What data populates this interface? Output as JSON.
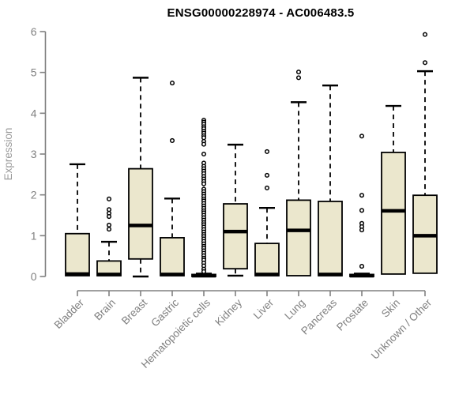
{
  "chart_data": {
    "type": "boxplot",
    "title": "ENSG00000228974 - AC006483.5",
    "xlabel": "",
    "ylabel": "Expression",
    "ylim": [
      0,
      6
    ],
    "yticks": [
      0,
      1,
      2,
      3,
      4,
      5,
      6
    ],
    "grid": false,
    "legend": "none",
    "categories": [
      "Bladder",
      "Brain",
      "Breast",
      "Gastric",
      "Hematopoietic cells",
      "Kidney",
      "Liver",
      "Lung",
      "Pancreas",
      "Prostate",
      "Skin",
      "Unknown / Other"
    ],
    "series": [
      {
        "name": "Bladder",
        "whisker_low": 0.02,
        "q1": 0.02,
        "median": 0.06,
        "q3": 1.05,
        "whisker_high": 2.75,
        "outliers": []
      },
      {
        "name": "Brain",
        "whisker_low": 0.02,
        "q1": 0.02,
        "median": 0.05,
        "q3": 0.38,
        "whisker_high": 0.85,
        "outliers": [
          1.9,
          1.64,
          1.55,
          1.47,
          1.26,
          1.16
        ]
      },
      {
        "name": "Breast",
        "whisker_low": 0.0,
        "q1": 0.43,
        "median": 1.25,
        "q3": 2.64,
        "whisker_high": 4.87,
        "outliers": []
      },
      {
        "name": "Gastric",
        "whisker_low": 0.02,
        "q1": 0.02,
        "median": 0.05,
        "q3": 0.95,
        "whisker_high": 1.91,
        "outliers": [
          4.74,
          3.33
        ]
      },
      {
        "name": "Hematopoietic cells",
        "whisker_low": 0.0,
        "q1": 0.0,
        "median": 0.02,
        "q3": 0.05,
        "whisker_high": 0.07,
        "outliers": [
          3.83,
          3.78,
          3.73,
          3.67,
          3.62,
          3.56,
          3.51,
          3.45,
          3.4,
          3.31,
          3.24,
          3.0,
          2.78,
          2.7,
          2.64,
          2.58,
          2.52,
          2.45,
          2.39,
          2.33,
          2.27,
          2.14,
          2.08,
          2.02,
          1.96,
          1.9,
          1.85,
          1.79,
          1.73,
          1.67,
          1.61,
          1.56,
          1.5,
          1.44,
          1.38,
          1.32,
          1.27,
          1.21,
          1.15,
          1.09,
          1.03,
          0.98,
          0.92,
          0.86,
          0.8,
          0.74,
          0.69,
          0.63,
          0.57,
          0.51,
          0.45,
          0.4,
          0.33,
          0.26,
          0.18,
          0.12
        ]
      },
      {
        "name": "Kidney",
        "whisker_low": 0.02,
        "q1": 0.19,
        "median": 1.1,
        "q3": 1.78,
        "whisker_high": 3.23,
        "outliers": []
      },
      {
        "name": "Liver",
        "whisker_low": 0.02,
        "q1": 0.02,
        "median": 0.05,
        "q3": 0.81,
        "whisker_high": 1.68,
        "outliers": [
          3.06,
          2.48,
          2.17
        ]
      },
      {
        "name": "Lung",
        "whisker_low": 0.02,
        "q1": 0.02,
        "median": 1.13,
        "q3": 1.87,
        "whisker_high": 4.27,
        "outliers": [
          5.01,
          4.87
        ]
      },
      {
        "name": "Pancreas",
        "whisker_low": 0.02,
        "q1": 0.02,
        "median": 0.05,
        "q3": 1.84,
        "whisker_high": 4.68,
        "outliers": []
      },
      {
        "name": "Prostate",
        "whisker_low": 0.0,
        "q1": 0.0,
        "median": 0.02,
        "q3": 0.05,
        "whisker_high": 0.07,
        "outliers": [
          3.44,
          1.99,
          1.62,
          1.3,
          1.22,
          1.14,
          0.25
        ]
      },
      {
        "name": "Skin",
        "whisker_low": 0.06,
        "q1": 0.06,
        "median": 1.61,
        "q3": 3.04,
        "whisker_high": 4.18,
        "outliers": []
      },
      {
        "name": "Unknown / Other",
        "whisker_low": 0.08,
        "q1": 0.08,
        "median": 1.0,
        "q3": 1.99,
        "whisker_high": 5.03,
        "outliers": [
          5.93,
          5.24
        ]
      }
    ],
    "colors": {
      "box_fill": "#ebe7cd",
      "box_border": "#000000",
      "median": "#000000",
      "whisker": "#000000",
      "outlier": "#000000",
      "axis": "#808080",
      "tick_label": "#808080",
      "axis_label": "#9b9b9b",
      "title": "#000000",
      "background": "#ffffff"
    }
  }
}
